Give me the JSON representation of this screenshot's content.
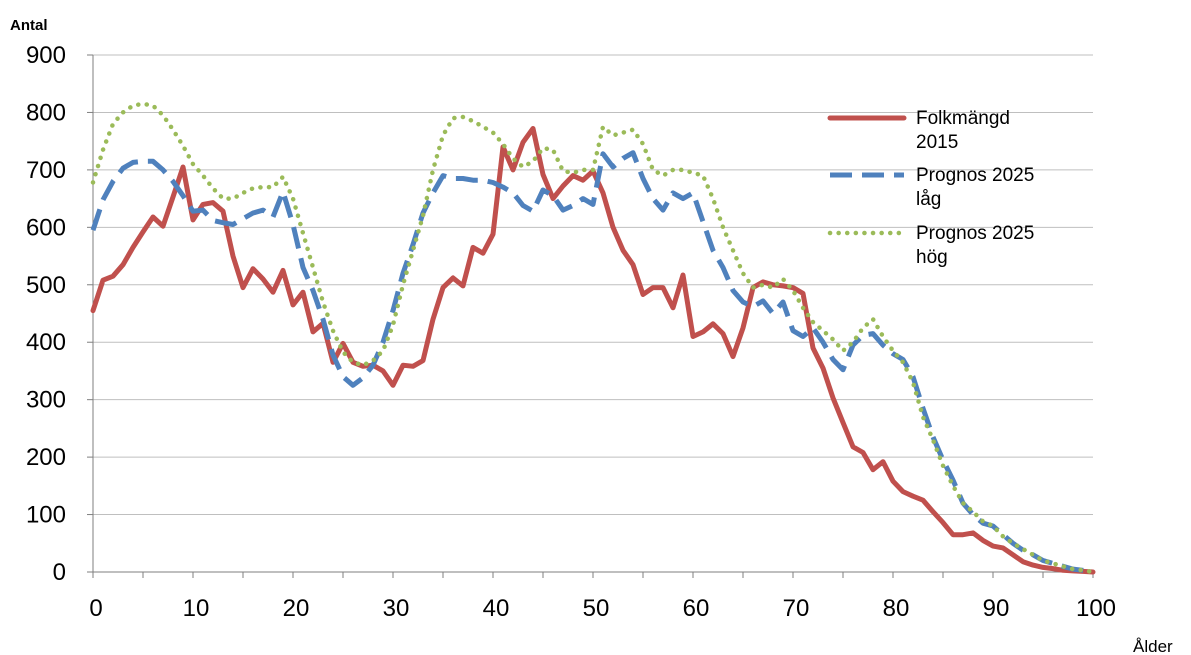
{
  "chart_data": {
    "type": "line",
    "ylabel": "Antal",
    "xlabel": "Ålder",
    "xlim": [
      0,
      100
    ],
    "ylim": [
      0,
      900
    ],
    "x_ticks": [
      0,
      10,
      20,
      30,
      40,
      50,
      60,
      70,
      80,
      90,
      100
    ],
    "y_ticks": [
      0,
      100,
      200,
      300,
      400,
      500,
      600,
      700,
      800,
      900
    ],
    "grid": "horizontal",
    "legend_position": "right",
    "series": [
      {
        "name": "Folkmängd 2015",
        "color": "#C0504D",
        "style": "solid",
        "x_start": 0,
        "values": [
          455,
          508,
          515,
          535,
          565,
          592,
          618,
          602,
          653,
          705,
          613,
          640,
          643,
          628,
          550,
          495,
          528,
          510,
          487,
          525,
          465,
          487,
          418,
          433,
          365,
          398,
          365,
          358,
          360,
          350,
          325,
          360,
          358,
          368,
          440,
          495,
          512,
          498,
          565,
          555,
          588,
          740,
          700,
          748,
          772,
          692,
          650,
          672,
          690,
          682,
          698,
          660,
          600,
          560,
          535,
          483,
          495,
          495,
          460,
          517,
          410,
          418,
          432,
          415,
          375,
          425,
          495,
          505,
          500,
          498,
          495,
          485,
          390,
          355,
          303,
          260,
          218,
          208,
          178,
          192,
          158,
          140,
          132,
          125,
          105,
          86,
          65,
          65,
          68,
          55,
          45,
          42,
          30,
          18,
          12,
          8,
          6,
          3,
          2,
          1,
          0
        ]
      },
      {
        "name": "Prognos 2025 låg",
        "color": "#4F81BD",
        "style": "dashed",
        "x_start": 0,
        "values": [
          595,
          648,
          680,
          703,
          713,
          715,
          715,
          700,
          680,
          655,
          628,
          630,
          612,
          608,
          605,
          615,
          625,
          630,
          618,
          662,
          605,
          530,
          490,
          440,
          378,
          340,
          325,
          338,
          360,
          400,
          455,
          520,
          570,
          625,
          660,
          690,
          685,
          685,
          682,
          682,
          678,
          670,
          660,
          638,
          628,
          665,
          655,
          630,
          638,
          650,
          640,
          728,
          705,
          720,
          730,
          685,
          650,
          630,
          660,
          650,
          660,
          610,
          560,
          530,
          490,
          470,
          462,
          472,
          450,
          470,
          420,
          410,
          425,
          400,
          370,
          352,
          395,
          412,
          415,
          395,
          380,
          370,
          340,
          285,
          235,
          195,
          160,
          120,
          100,
          85,
          80,
          65,
          50,
          38,
          30,
          20,
          15,
          10,
          5,
          3,
          0
        ]
      },
      {
        "name": "Prognos 2025 hög",
        "color": "#9BBB59",
        "style": "dotted",
        "x_start": 0,
        "values": [
          678,
          735,
          780,
          800,
          812,
          815,
          812,
          795,
          770,
          742,
          710,
          690,
          668,
          650,
          650,
          660,
          668,
          670,
          670,
          688,
          650,
          590,
          530,
          470,
          420,
          383,
          365,
          360,
          368,
          385,
          430,
          500,
          560,
          620,
          700,
          760,
          790,
          792,
          785,
          775,
          765,
          745,
          720,
          705,
          715,
          738,
          735,
          698,
          695,
          700,
          700,
          775,
          760,
          765,
          770,
          745,
          700,
          690,
          700,
          700,
          695,
          690,
          650,
          600,
          560,
          520,
          495,
          500,
          495,
          510,
          490,
          460,
          435,
          420,
          405,
          385,
          400,
          425,
          440,
          410,
          385,
          365,
          330,
          270,
          230,
          185,
          150,
          120,
          105,
          88,
          80,
          62,
          50,
          40,
          30,
          20,
          15,
          10,
          5,
          3,
          0
        ]
      }
    ],
    "legend": [
      {
        "line1": "Folkmängd",
        "line2": "2015"
      },
      {
        "line1": "Prognos 2025",
        "line2": "låg"
      },
      {
        "line1": "Prognos 2025",
        "line2": "hög"
      }
    ]
  }
}
